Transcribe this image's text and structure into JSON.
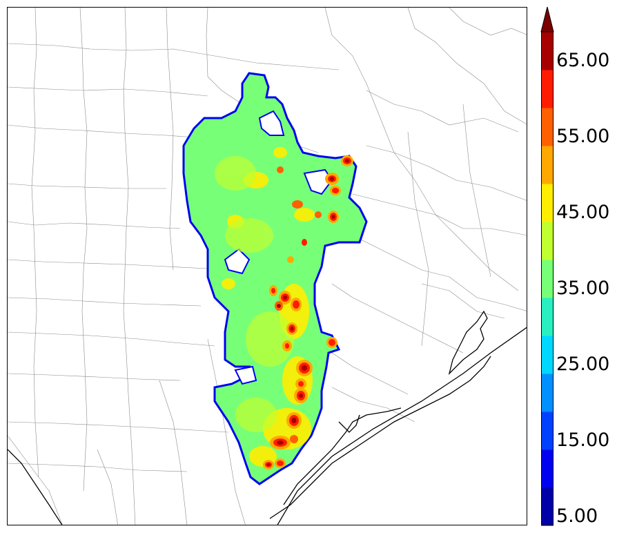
{
  "colorbar": {
    "labels": [
      "5.00",
      "15.00",
      "25.00",
      "35.00",
      "45.00",
      "55.00",
      "65.00"
    ],
    "bins": [
      {
        "value": 5,
        "color": "#0000a8"
      },
      {
        "value": 10,
        "color": "#0000f0"
      },
      {
        "value": 15,
        "color": "#0040ff"
      },
      {
        "value": 20,
        "color": "#0090ff"
      },
      {
        "value": 25,
        "color": "#00d8ff"
      },
      {
        "value": 30,
        "color": "#28f0c0"
      },
      {
        "value": 35,
        "color": "#78ff78"
      },
      {
        "value": 40,
        "color": "#c0ff30"
      },
      {
        "value": 45,
        "color": "#ffee00"
      },
      {
        "value": 50,
        "color": "#ffa800"
      },
      {
        "value": 55,
        "color": "#ff6000"
      },
      {
        "value": 60,
        "color": "#ff1c00"
      },
      {
        "value": 65,
        "color": "#a80000"
      }
    ],
    "extend": "max",
    "extend_color": "#7a0000"
  },
  "map": {
    "field_base_color": "#78ff78",
    "outline_color": "#0000f0",
    "coast_color": "#000000",
    "county_line_color": "#8a8a8a"
  }
}
